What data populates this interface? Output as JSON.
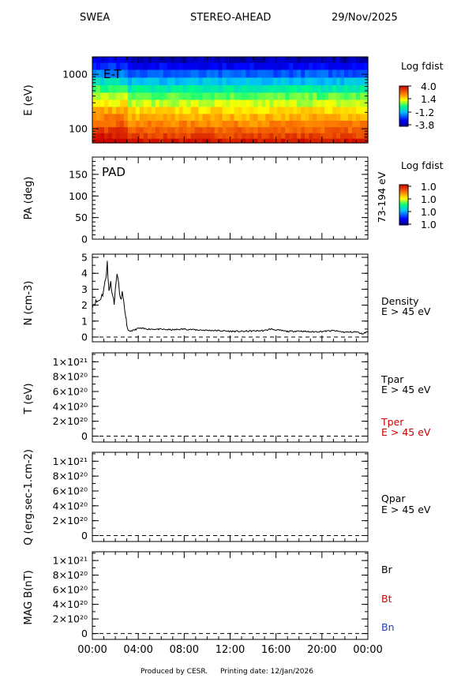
{
  "header": {
    "instrument": "SWEA",
    "spacecraft": "STEREO-AHEAD",
    "date": "29/Nov/2025"
  },
  "footer": {
    "produced_by": "Produced by CESR.",
    "printing_date": "Printing date: 12/Jan/2026"
  },
  "colors": {
    "trace": "#000000",
    "red_label": "#cc0000",
    "blue_label": "#1f3fbf"
  },
  "chart_data": [
    {
      "id": "et",
      "type": "heatmap",
      "ylabel": "E (eV)",
      "yscale": "log",
      "ylim": [
        55,
        2100
      ],
      "yticks": [
        100,
        1000
      ],
      "yticklabels": [
        "100",
        "1000"
      ],
      "xlim": [
        0,
        24
      ],
      "panel_label": "E-T",
      "colorbar": {
        "title": "Log fdist",
        "ticklabels": [
          "4.0",
          "1.4",
          "-1.2",
          "-3.8"
        ],
        "range": [
          -3.8,
          4.0
        ]
      },
      "energy_bands": [
        {
          "energy": 60,
          "level": 3.7
        },
        {
          "energy": 75,
          "level": 3.2
        },
        {
          "energy": 95,
          "level": 2.8
        },
        {
          "energy": 125,
          "level": 2.4
        },
        {
          "energy": 165,
          "level": 2.0
        },
        {
          "energy": 220,
          "level": 1.6
        },
        {
          "energy": 300,
          "level": 1.0
        },
        {
          "energy": 400,
          "level": 0.5
        },
        {
          "energy": 550,
          "level": -0.2
        },
        {
          "energy": 750,
          "level": -1.0
        },
        {
          "energy": 1050,
          "level": -1.9
        },
        {
          "energy": 1450,
          "level": -2.7
        },
        {
          "energy": 1900,
          "level": -3.3
        }
      ]
    },
    {
      "id": "pad",
      "type": "heatmap",
      "ylabel": "PA (deg)",
      "ylim": [
        0,
        190
      ],
      "yticks": [
        0,
        50,
        100,
        150
      ],
      "yticklabels": [
        "0",
        "50",
        "100",
        "150"
      ],
      "xlim": [
        0,
        24
      ],
      "panel_label": "PAD",
      "right_label": "73-194 eV",
      "colorbar": {
        "title": "Log fdist",
        "ticklabels": [
          "1.0",
          "1.0",
          "1.0",
          "1.0"
        ]
      }
    },
    {
      "id": "density",
      "type": "line",
      "ylabel": "N (cm-3)",
      "ylim": [
        -0.3,
        5.2
      ],
      "yticks": [
        0,
        1,
        2,
        3,
        4,
        5
      ],
      "yticklabels": [
        "0",
        "1",
        "2",
        "3",
        "4",
        "5"
      ],
      "xlim": [
        0,
        24
      ],
      "series_labels": [
        "Density",
        "E > 45 eV"
      ],
      "x": [
        0,
        0.3,
        0.6,
        0.9,
        1.1,
        1.2,
        1.3,
        1.35,
        1.45,
        1.6,
        1.8,
        1.9,
        2.0,
        2.15,
        2.3,
        2.45,
        2.6,
        2.75,
        2.9,
        3.0,
        3.1,
        3.3,
        3.6,
        4,
        5,
        6,
        7,
        8,
        9,
        10,
        11,
        12,
        13,
        14,
        15,
        15.5,
        16,
        17,
        18,
        19,
        20,
        21,
        22,
        23,
        23.5,
        24
      ],
      "y": [
        2.0,
        2.2,
        2.3,
        2.7,
        3.4,
        3.9,
        4.7,
        3.8,
        3.0,
        3.4,
        2.5,
        2.2,
        2.9,
        4.1,
        3.2,
        2.3,
        2.8,
        2.0,
        1.4,
        0.7,
        0.4,
        0.38,
        0.42,
        0.55,
        0.5,
        0.48,
        0.45,
        0.5,
        0.45,
        0.42,
        0.4,
        0.36,
        0.35,
        0.38,
        0.4,
        0.5,
        0.45,
        0.35,
        0.38,
        0.32,
        0.35,
        0.4,
        0.3,
        0.32,
        0.2,
        0.35
      ],
      "baseline": 0
    },
    {
      "id": "temperature",
      "type": "line",
      "ylabel": "T (eV)",
      "ylim": [
        -8e+19,
        1.12e+21
      ],
      "ytick_values": [
        0,
        2e+20,
        4e+20,
        6e+20,
        8e+20,
        1e+21
      ],
      "yticklabels": [
        "0",
        "2×10²⁰",
        "4×10²⁰",
        "6×10²⁰",
        "8×10²⁰",
        "1×10²¹"
      ],
      "xlim": [
        0,
        24
      ],
      "series_labels": [
        "Tpar",
        "E > 45 eV",
        "Tper",
        "E > 45 eV"
      ],
      "baseline": 0
    },
    {
      "id": "heatflux",
      "type": "line",
      "ylabel": "Q (erg.sec-1.cm-2)",
      "ylim": [
        -8e+19,
        1.12e+21
      ],
      "ytick_values": [
        0,
        2e+20,
        4e+20,
        6e+20,
        8e+20,
        1e+21
      ],
      "yticklabels": [
        "0",
        "2×10²⁰",
        "4×10²⁰",
        "6×10²⁰",
        "8×10²⁰",
        "1×10²¹"
      ],
      "xlim": [
        0,
        24
      ],
      "series_labels": [
        "Qpar",
        "E > 45 eV"
      ],
      "baseline": 0
    },
    {
      "id": "mag",
      "type": "line",
      "ylabel": "MAG B(nT)",
      "ylim": [
        -8e+19,
        1.12e+21
      ],
      "ytick_values": [
        0,
        2e+20,
        4e+20,
        6e+20,
        8e+20,
        1e+21
      ],
      "yticklabels": [
        "0",
        "2×10²⁰",
        "4×10²⁰",
        "6×10²⁰",
        "8×10²⁰",
        "1×10²¹"
      ],
      "xlim": [
        0,
        24
      ],
      "series_labels": [
        "Br",
        "Bt",
        "Bn"
      ],
      "xtick_values": [
        0,
        4,
        8,
        12,
        16,
        20,
        24
      ],
      "xticklabels": [
        "00:00",
        "04:00",
        "08:00",
        "12:00",
        "16:00",
        "20:00",
        "00:00"
      ],
      "baseline": 0
    }
  ]
}
